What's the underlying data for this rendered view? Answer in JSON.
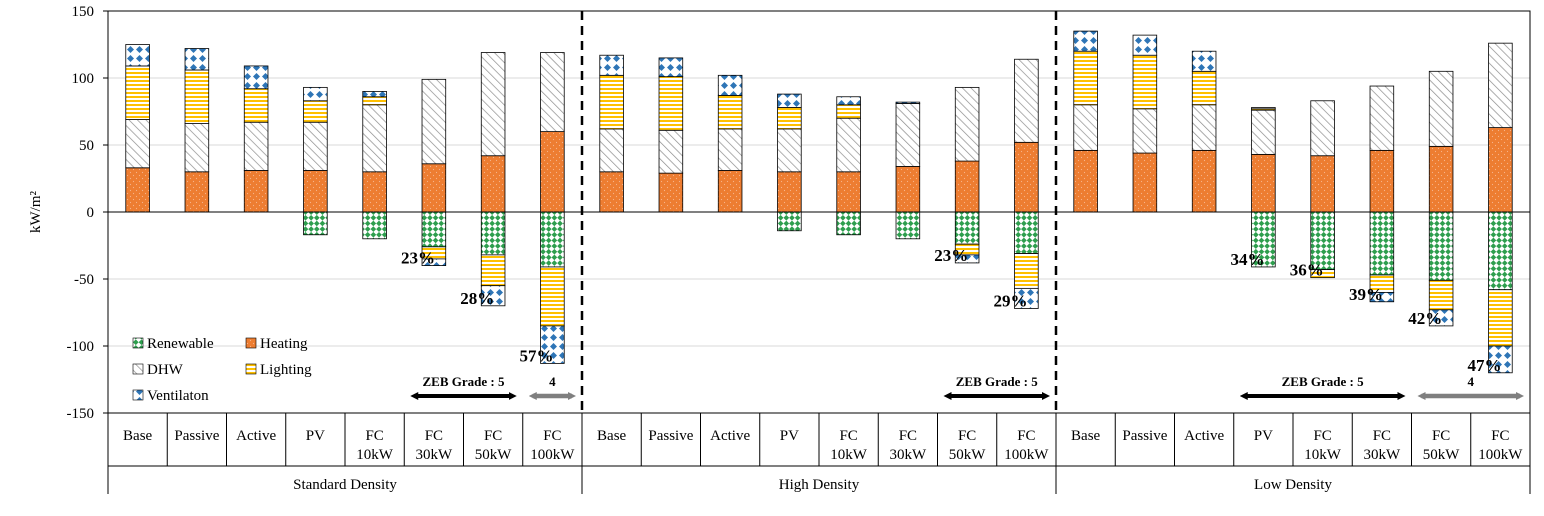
{
  "chart_data": {
    "type": "bar",
    "stacked": true,
    "ylabel": "kW/m²",
    "ylim": [
      -150,
      150
    ],
    "yticks": [
      150,
      100,
      50,
      0,
      -50,
      -100,
      -150
    ],
    "grid": true,
    "legend_position": "bottom-left",
    "series": [
      {
        "key": "ren",
        "name": "Renewable"
      },
      {
        "key": "heat",
        "name": "Heating"
      },
      {
        "key": "dhw",
        "name": "DHW"
      },
      {
        "key": "light",
        "name": "Lighting"
      },
      {
        "key": "vent",
        "name": "Ventilaton"
      }
    ],
    "colors": {
      "ren": "#2e9e4e",
      "heat": "#ed7d31",
      "dhw": "#888888",
      "light": "#ffc000",
      "vent": "#2e75b6"
    },
    "groups": [
      {
        "name": "Standard Density",
        "bars": [
          {
            "label": [
              "Base"
            ],
            "heat": 33,
            "dhw": 36,
            "light": 40,
            "vent": 16,
            "neg": null,
            "pct": null
          },
          {
            "label": [
              "Passive"
            ],
            "heat": 30,
            "dhw": 36,
            "light": 40,
            "vent": 16,
            "neg": null,
            "pct": null
          },
          {
            "label": [
              "Active"
            ],
            "heat": 31,
            "dhw": 36,
            "light": 25,
            "vent": 17,
            "neg": null,
            "pct": null
          },
          {
            "label": [
              "PV"
            ],
            "heat": 31,
            "dhw": 36,
            "light": 16,
            "vent": 10,
            "neg": {
              "ren": 17,
              "light": 0,
              "vent": 0
            },
            "pct": null
          },
          {
            "label": [
              "FC",
              "10kW"
            ],
            "heat": 30,
            "dhw": 50,
            "light": 6,
            "vent": 4,
            "neg": {
              "ren": 20,
              "light": 0,
              "vent": 0
            },
            "pct": null
          },
          {
            "label": [
              "FC",
              "30kW"
            ],
            "heat": 36,
            "dhw": 63,
            "light": 0,
            "vent": 0,
            "neg": {
              "ren": 26,
              "light": 9,
              "vent": 5
            },
            "pct": "23%"
          },
          {
            "label": [
              "FC",
              "50kW"
            ],
            "heat": 42,
            "dhw": 77,
            "light": 0,
            "vent": 0,
            "neg": {
              "ren": 32,
              "light": 23,
              "vent": 15
            },
            "pct": "28%"
          },
          {
            "label": [
              "FC",
              "100kW"
            ],
            "heat": 60,
            "dhw": 59,
            "light": 0,
            "vent": 0,
            "neg": {
              "ren": 41,
              "light": 44,
              "vent": 28
            },
            "pct": "57%"
          }
        ],
        "zeb": [
          {
            "text": "ZEB Grade : 5",
            "from": 5,
            "to": 6,
            "color": "#000000"
          },
          {
            "text": "4",
            "from": 7,
            "to": 7,
            "color": "#7f7f7f"
          }
        ]
      },
      {
        "name": "High Density",
        "bars": [
          {
            "label": [
              "Base"
            ],
            "heat": 30,
            "dhw": 32,
            "light": 40,
            "vent": 15,
            "neg": null,
            "pct": null
          },
          {
            "label": [
              "Passive"
            ],
            "heat": 29,
            "dhw": 32,
            "light": 40,
            "vent": 14,
            "neg": null,
            "pct": null
          },
          {
            "label": [
              "Active"
            ],
            "heat": 31,
            "dhw": 31,
            "light": 25,
            "vent": 15,
            "neg": null,
            "pct": null
          },
          {
            "label": [
              "PV"
            ],
            "heat": 30,
            "dhw": 32,
            "light": 16,
            "vent": 10,
            "neg": {
              "ren": 14,
              "light": 0,
              "vent": 0
            },
            "pct": null
          },
          {
            "label": [
              "FC",
              "10kW"
            ],
            "heat": 30,
            "dhw": 40,
            "light": 10,
            "vent": 6,
            "neg": {
              "ren": 17,
              "light": 0,
              "vent": 0
            },
            "pct": null
          },
          {
            "label": [
              "FC",
              "30kW"
            ],
            "heat": 34,
            "dhw": 47,
            "light": 0,
            "vent": 1,
            "neg": {
              "ren": 20,
              "light": 0,
              "vent": 0
            },
            "pct": null
          },
          {
            "label": [
              "FC",
              "50kW"
            ],
            "heat": 38,
            "dhw": 55,
            "light": 0,
            "vent": 0,
            "neg": {
              "ren": 24,
              "light": 8,
              "vent": 6
            },
            "pct": "23%"
          },
          {
            "label": [
              "FC",
              "100kW"
            ],
            "heat": 52,
            "dhw": 62,
            "light": 0,
            "vent": 0,
            "neg": {
              "ren": 31,
              "light": 26,
              "vent": 15
            },
            "pct": "29%"
          }
        ],
        "zeb": [
          {
            "text": "ZEB Grade : 5",
            "from": 6,
            "to": 7,
            "color": "#000000"
          }
        ]
      },
      {
        "name": "Low Density",
        "bars": [
          {
            "label": [
              "Base"
            ],
            "heat": 46,
            "dhw": 34,
            "light": 40,
            "vent": 15,
            "neg": null,
            "pct": null
          },
          {
            "label": [
              "Passive"
            ],
            "heat": 44,
            "dhw": 33,
            "light": 40,
            "vent": 15,
            "neg": null,
            "pct": null
          },
          {
            "label": [
              "Active"
            ],
            "heat": 46,
            "dhw": 34,
            "light": 25,
            "vent": 15,
            "neg": null,
            "pct": null
          },
          {
            "label": [
              "PV"
            ],
            "heat": 43,
            "dhw": 33,
            "light": 1,
            "vent": 1,
            "neg": {
              "ren": 41,
              "light": 0,
              "vent": 0
            },
            "pct": "34%"
          },
          {
            "label": [
              "FC",
              "10kW"
            ],
            "heat": 42,
            "dhw": 41,
            "light": 0,
            "vent": 0,
            "neg": {
              "ren": 43,
              "light": 6,
              "vent": 0
            },
            "pct": "36%"
          },
          {
            "label": [
              "FC",
              "30kW"
            ],
            "heat": 46,
            "dhw": 48,
            "light": 0,
            "vent": 0,
            "neg": {
              "ren": 47,
              "light": 13,
              "vent": 7
            },
            "pct": "39%"
          },
          {
            "label": [
              "FC",
              "50kW"
            ],
            "heat": 49,
            "dhw": 56,
            "light": 0,
            "vent": 0,
            "neg": {
              "ren": 51,
              "light": 22,
              "vent": 12
            },
            "pct": "42%"
          },
          {
            "label": [
              "FC",
              "100kW"
            ],
            "heat": 63,
            "dhw": 63,
            "light": 0,
            "vent": 0,
            "neg": {
              "ren": 58,
              "light": 42,
              "vent": 20
            },
            "pct": "47%"
          }
        ],
        "zeb": [
          {
            "text": "ZEB Grade : 5",
            "from": 3,
            "to": 5,
            "color": "#000000"
          },
          {
            "text": "4",
            "from": 6,
            "to": 7,
            "color": "#7f7f7f"
          }
        ]
      }
    ]
  }
}
